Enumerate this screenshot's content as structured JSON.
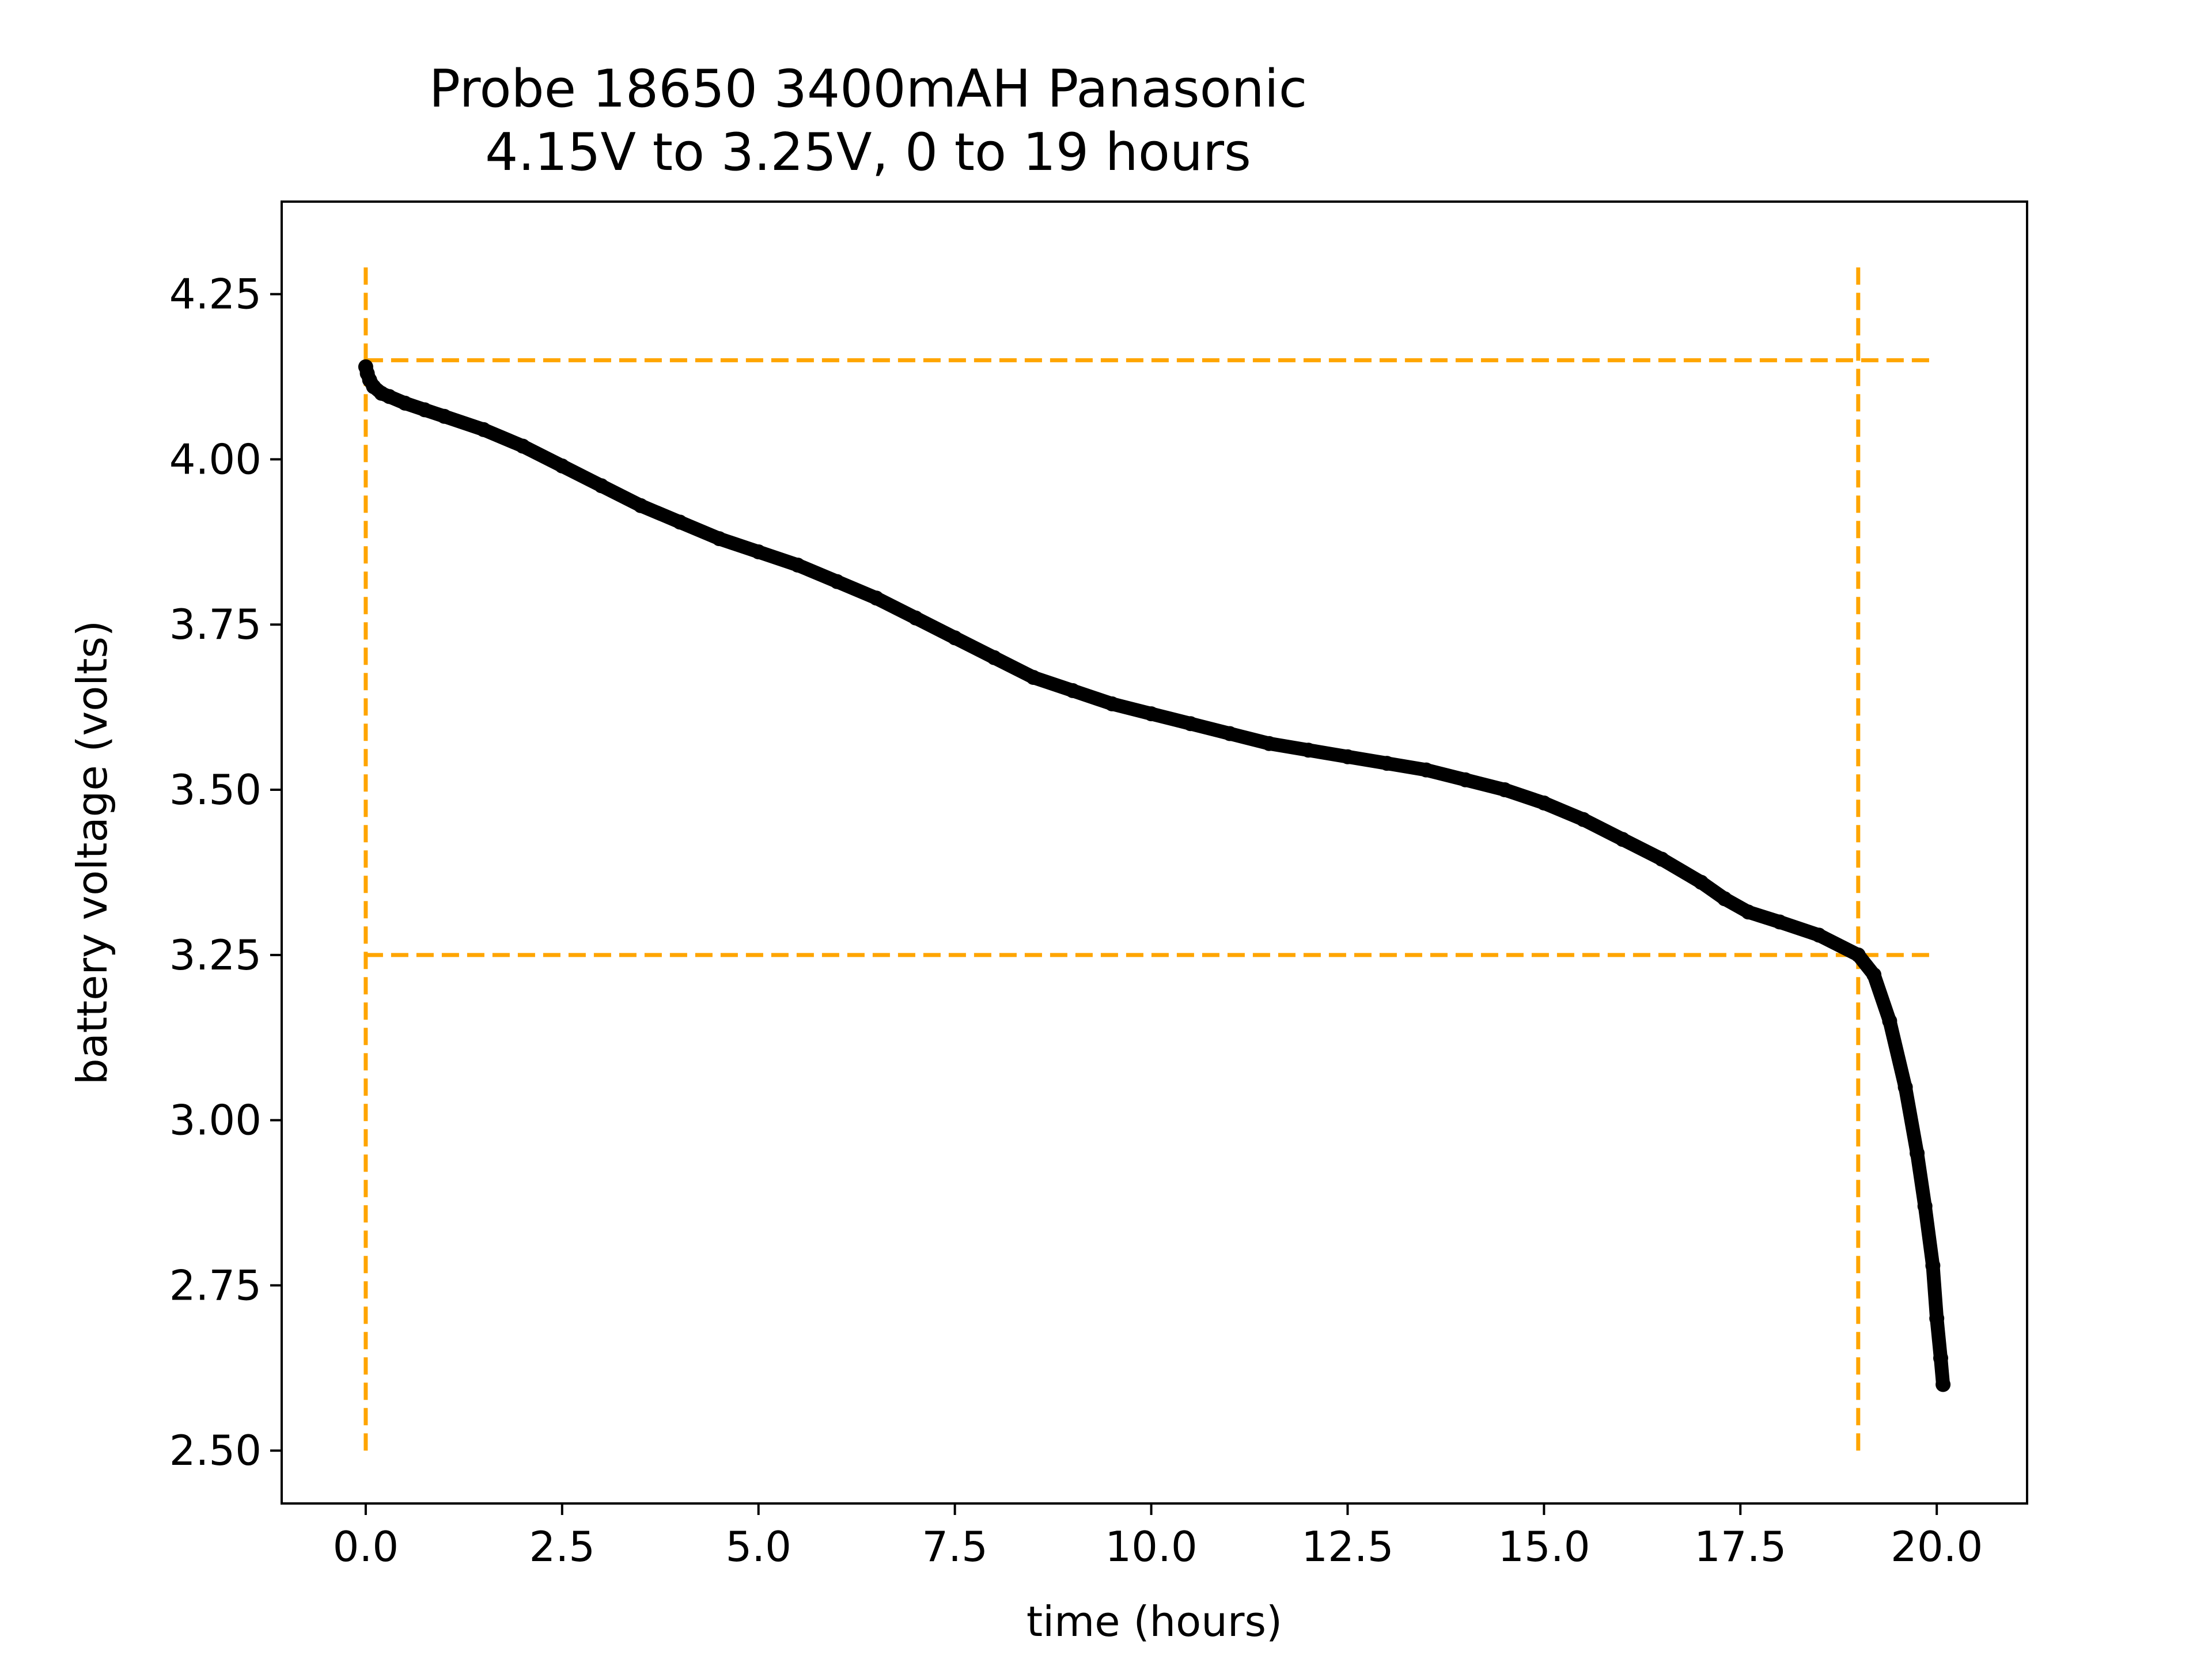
{
  "chart_data": {
    "type": "line",
    "title": "Probe 18650 3400mAH Panasonic",
    "subtitle": "4.15V to 3.25V, 0 to 19 hours",
    "xlabel": "time (hours)",
    "ylabel": "battery voltage (volts)",
    "xlim": [
      -1.07,
      21.15
    ],
    "ylim": [
      2.42,
      4.39
    ],
    "xticks": [
      0.0,
      2.5,
      5.0,
      7.5,
      10.0,
      12.5,
      15.0,
      17.5,
      20.0
    ],
    "xtick_labels": [
      "0.0",
      "2.5",
      "5.0",
      "7.5",
      "10.0",
      "12.5",
      "15.0",
      "17.5",
      "20.0"
    ],
    "yticks": [
      2.5,
      2.75,
      3.0,
      3.25,
      3.5,
      3.75,
      4.0,
      4.25
    ],
    "ytick_labels": [
      "2.50",
      "2.75",
      "3.00",
      "3.25",
      "3.50",
      "3.75",
      "4.00",
      "4.25"
    ],
    "grid": false,
    "colors": {
      "series": "#000000",
      "reference_lines": "#FFA500"
    },
    "series": [
      {
        "x": [
          0.0,
          0.02,
          0.05,
          0.1,
          0.2,
          0.3,
          0.5,
          0.75,
          1.0,
          1.5,
          2.0,
          2.5,
          3.0,
          3.5,
          4.0,
          4.5,
          5.0,
          5.5,
          6.0,
          6.5,
          7.0,
          7.5,
          8.0,
          8.5,
          9.0,
          9.5,
          10.0,
          10.5,
          11.0,
          11.5,
          12.0,
          12.5,
          13.0,
          13.5,
          14.0,
          14.5,
          15.0,
          15.5,
          16.0,
          16.5,
          17.0,
          17.3,
          17.6,
          18.0,
          18.5,
          19.0,
          19.2,
          19.4,
          19.6,
          19.75,
          19.85,
          19.95,
          20.0,
          20.05,
          20.08
        ],
        "y": [
          4.14,
          4.13,
          4.12,
          4.11,
          4.1,
          4.095,
          4.085,
          4.075,
          4.065,
          4.045,
          4.02,
          3.99,
          3.96,
          3.93,
          3.905,
          3.88,
          3.86,
          3.84,
          3.815,
          3.79,
          3.76,
          3.73,
          3.7,
          3.67,
          3.65,
          3.63,
          3.615,
          3.6,
          3.585,
          3.57,
          3.56,
          3.55,
          3.54,
          3.53,
          3.515,
          3.5,
          3.48,
          3.455,
          3.425,
          3.395,
          3.36,
          3.335,
          3.315,
          3.3,
          3.28,
          3.25,
          3.22,
          3.15,
          3.05,
          2.95,
          2.87,
          2.78,
          2.7,
          2.64,
          2.6
        ]
      }
    ],
    "reference_lines": [
      {
        "orientation": "horizontal",
        "y": 4.15,
        "x_range": [
          0.0,
          20.0
        ]
      },
      {
        "orientation": "horizontal",
        "y": 3.25,
        "x_range": [
          0.0,
          20.0
        ]
      },
      {
        "orientation": "vertical",
        "x": 0.0,
        "y_range": [
          2.5,
          4.3
        ]
      },
      {
        "orientation": "vertical",
        "x": 19.0,
        "y_range": [
          2.5,
          4.3
        ]
      }
    ]
  }
}
